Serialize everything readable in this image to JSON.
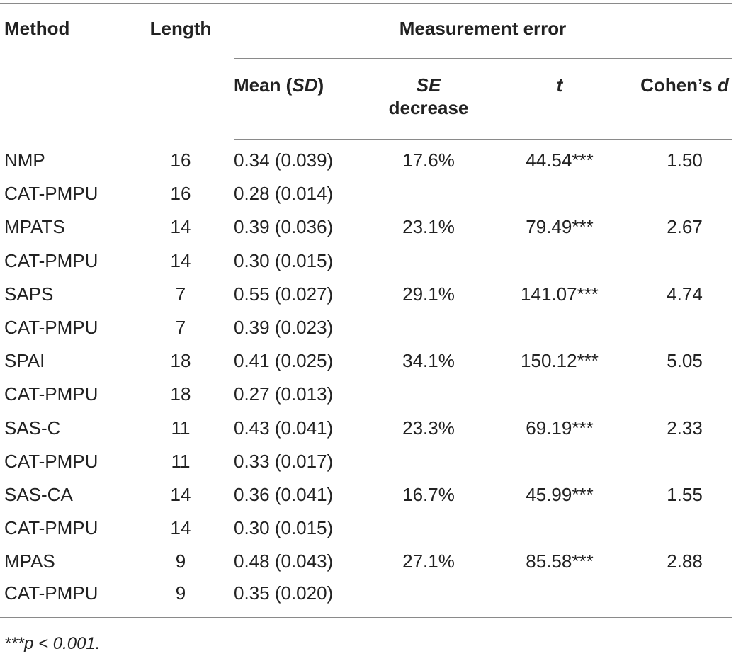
{
  "header": {
    "method": "Method",
    "length": "Length",
    "measurement_error": "Measurement error",
    "mean_label": "Mean (",
    "mean_sd": "SD",
    "mean_close": ")",
    "se_label": "SE",
    "se_decrease": "decrease",
    "t_label": "t",
    "cohens_label": "Cohen’s ",
    "cohens_d": "d"
  },
  "rows": [
    {
      "method": "NMP",
      "length": "16",
      "mean": "0.34 (0.039)",
      "se": "17.6%",
      "t": "44.54***",
      "d": "1.50"
    },
    {
      "method": "CAT-PMPU",
      "length": "16",
      "mean": "0.28 (0.014)",
      "se": "",
      "t": "",
      "d": ""
    },
    {
      "method": "MPATS",
      "length": "14",
      "mean": "0.39 (0.036)",
      "se": "23.1%",
      "t": "79.49***",
      "d": "2.67"
    },
    {
      "method": "CAT-PMPU",
      "length": "14",
      "mean": "0.30 (0.015)",
      "se": "",
      "t": "",
      "d": ""
    },
    {
      "method": "SAPS",
      "length": "7",
      "mean": "0.55 (0.027)",
      "se": "29.1%",
      "t": "141.07***",
      "d": "4.74"
    },
    {
      "method": "CAT-PMPU",
      "length": "7",
      "mean": "0.39 (0.023)",
      "se": "",
      "t": "",
      "d": ""
    },
    {
      "method": "SPAI",
      "length": "18",
      "mean": "0.41 (0.025)",
      "se": "34.1%",
      "t": "150.12***",
      "d": "5.05"
    },
    {
      "method": "CAT-PMPU",
      "length": "18",
      "mean": "0.27 (0.013)",
      "se": "",
      "t": "",
      "d": ""
    },
    {
      "method": "SAS-C",
      "length": "11",
      "mean": "0.43 (0.041)",
      "se": "23.3%",
      "t": "69.19***",
      "d": "2.33"
    },
    {
      "method": "CAT-PMPU",
      "length": "11",
      "mean": "0.33 (0.017)",
      "se": "",
      "t": "",
      "d": ""
    },
    {
      "method": "SAS-CA",
      "length": "14",
      "mean": "0.36 (0.041)",
      "se": "16.7%",
      "t": "45.99***",
      "d": "1.55"
    },
    {
      "method": "CAT-PMPU",
      "length": "14",
      "mean": "0.30 (0.015)",
      "se": "",
      "t": "",
      "d": ""
    },
    {
      "method": "MPAS",
      "length": "9",
      "mean": "0.48 (0.043)",
      "se": "27.1%",
      "t": "85.58***",
      "d": "2.88"
    },
    {
      "method": "CAT-PMPU",
      "length": "9",
      "mean": "0.35 (0.020)",
      "se": "",
      "t": "",
      "d": ""
    }
  ],
  "footnote": "***p < 0.001."
}
